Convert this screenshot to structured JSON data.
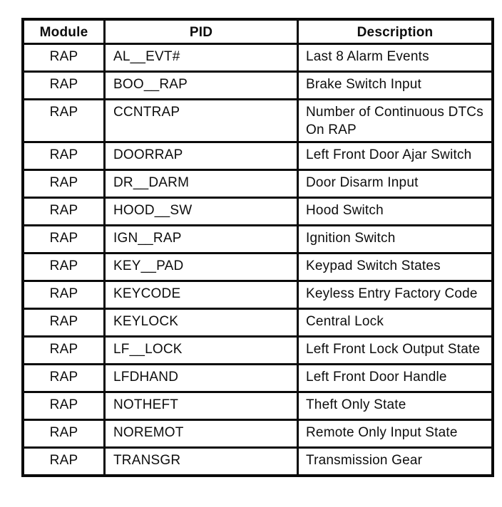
{
  "page": {
    "background_color": "#ffffff",
    "border_color": "#0a0a0a",
    "text_color": "#0d0d0d"
  },
  "table": {
    "headers": [
      "Module",
      "PID",
      "Description"
    ],
    "rows": [
      {
        "module": "RAP",
        "pid": "AL__EVT#",
        "description": "Last 8 Alarm Events"
      },
      {
        "module": "RAP",
        "pid": "BOO__RAP",
        "description": "Brake Switch Input"
      },
      {
        "module": "RAP",
        "pid": "CCNTRAP",
        "description": "Number of Continuous DTCs On RAP"
      },
      {
        "module": "RAP",
        "pid": "DOORRAP",
        "description": "Left Front Door Ajar Switch"
      },
      {
        "module": "RAP",
        "pid": "DR__DARM",
        "description": "Door Disarm Input"
      },
      {
        "module": "RAP",
        "pid": "HOOD__SW",
        "description": "Hood Switch"
      },
      {
        "module": "RAP",
        "pid": "IGN__RAP",
        "description": "Ignition Switch"
      },
      {
        "module": "RAP",
        "pid": "KEY__PAD",
        "description": "Keypad Switch States"
      },
      {
        "module": "RAP",
        "pid": "KEYCODE",
        "description": "Keyless Entry Factory Code"
      },
      {
        "module": "RAP",
        "pid": "KEYLOCK",
        "description": "Central Lock"
      },
      {
        "module": "RAP",
        "pid": "LF__LOCK",
        "description": "Left Front Lock Output State"
      },
      {
        "module": "RAP",
        "pid": "LFDHAND",
        "description": "Left Front Door Handle"
      },
      {
        "module": "RAP",
        "pid": "NOTHEFT",
        "description": "Theft Only State"
      },
      {
        "module": "RAP",
        "pid": "NOREMOT",
        "description": "Remote Only Input State"
      },
      {
        "module": "RAP",
        "pid": "TRANSGR",
        "description": "Transmission Gear"
      }
    ]
  }
}
